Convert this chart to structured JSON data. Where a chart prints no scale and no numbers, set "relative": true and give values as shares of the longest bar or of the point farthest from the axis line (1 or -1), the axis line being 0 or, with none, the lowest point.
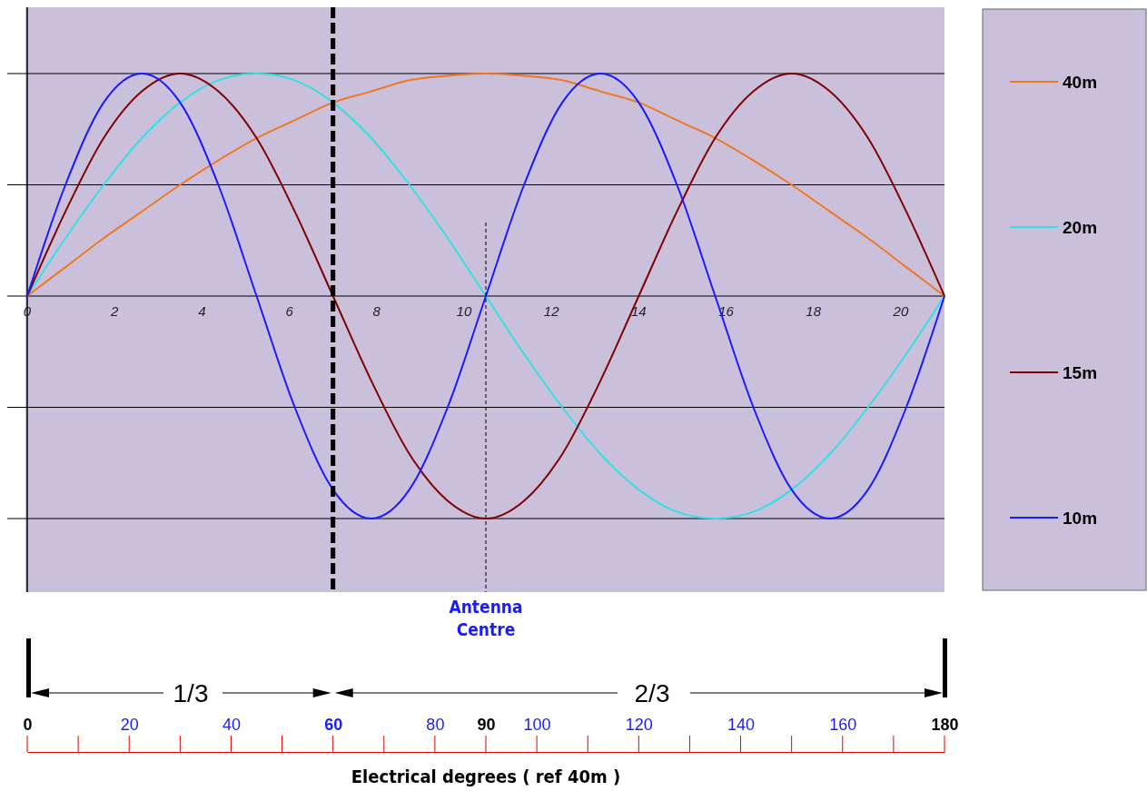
{
  "chart_data": {
    "type": "line",
    "relative": true,
    "x": [
      0,
      7.5,
      15,
      22.5,
      30,
      37.5,
      45,
      52.5,
      60,
      67.5,
      75,
      82.5,
      90,
      97.5,
      105,
      112.5,
      120,
      127.5,
      135,
      142.5,
      150,
      157.5,
      165,
      172.5,
      180
    ],
    "x2lim": [
      0,
      21
    ],
    "x2ticks": [
      0,
      2,
      4,
      6,
      8,
      10,
      12,
      14,
      16,
      18,
      20
    ],
    "xlim": [
      0,
      180
    ],
    "xticks": [
      0,
      20,
      40,
      60,
      80,
      90,
      100,
      120,
      140,
      160,
      180
    ],
    "xlabel": "Electrical degrees ( ref 40m )",
    "grid": "y",
    "legend": "right",
    "line_style": "solid",
    "series": [
      {
        "name": "40m",
        "color": "#f07820",
        "values": [
          0,
          0.13,
          0.26,
          0.38,
          0.5,
          0.61,
          0.71,
          0.79,
          0.87,
          0.92,
          0.97,
          0.99,
          1,
          0.99,
          0.97,
          0.92,
          0.87,
          0.79,
          0.71,
          0.61,
          0.5,
          0.38,
          0.26,
          0.13,
          0
        ]
      },
      {
        "name": "20m",
        "color": "#33e0e0",
        "values": [
          0,
          0.26,
          0.5,
          0.71,
          0.87,
          0.97,
          1,
          0.97,
          0.87,
          0.71,
          0.5,
          0.26,
          0,
          -0.26,
          -0.5,
          -0.71,
          -0.87,
          -0.97,
          -1,
          -0.97,
          -0.87,
          -0.71,
          -0.5,
          -0.26,
          0
        ]
      },
      {
        "name": "15m",
        "color": "#800000",
        "values": [
          0,
          0.38,
          0.71,
          0.92,
          1,
          0.92,
          0.71,
          0.38,
          0,
          -0.38,
          -0.71,
          -0.92,
          -1,
          -0.92,
          -0.71,
          -0.38,
          0,
          0.38,
          0.71,
          0.92,
          1,
          0.92,
          0.71,
          0.38,
          0
        ]
      },
      {
        "name": "10m",
        "color": "#1a1aff",
        "values": [
          0,
          0.5,
          0.87,
          1,
          0.87,
          0.5,
          0,
          -0.5,
          -0.87,
          -1,
          -0.87,
          -0.5,
          0,
          0.5,
          0.87,
          1,
          0.87,
          0.5,
          0,
          -0.5,
          -0.87,
          -1,
          -0.87,
          -0.5,
          0
        ]
      }
    ],
    "ref_lines": [
      {
        "axis": "x",
        "value": 60,
        "color": "#000000",
        "line_style": "dashed"
      },
      {
        "axis": "x",
        "value": 90,
        "label": "Antenna Centre",
        "color": "#000000",
        "line_style": "dashed"
      }
    ],
    "annotations": [
      "1/3",
      "2/3"
    ]
  }
}
